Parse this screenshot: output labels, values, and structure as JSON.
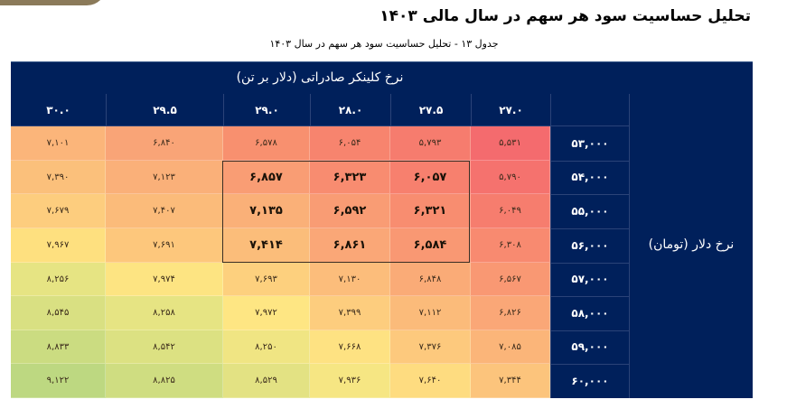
{
  "page": {
    "title": "تحلیل حساسیت سود هر سهم در سال مالی ۱۴۰۳",
    "caption": "جدول ۱۳ - تحلیل حساسیت سود هر سهم در سال ۱۴۰۳"
  },
  "table": {
    "column_group_title": "نرخ کلینکر صادراتی (دلار بر تن)",
    "row_group_title": "نرخ  دلار (تومان)",
    "columns": [
      "۳۰.۰",
      "۲۹.۵",
      "۲۹.۰",
      "۲۸.۰",
      "۲۷.۵",
      "۲۷.۰"
    ],
    "rows": [
      {
        "label": "۵۳,۰۰۰",
        "cells": [
          "۷,۱۰۱",
          "۶,۸۴۰",
          "۶,۵۷۸",
          "۶,۰۵۴",
          "۵,۷۹۳",
          "۵,۵۳۱"
        ]
      },
      {
        "label": "۵۴,۰۰۰",
        "cells": [
          "۷,۳۹۰",
          "۷,۱۲۳",
          "۶,۸۵۷",
          "۶,۳۲۳",
          "۶,۰۵۷",
          "۵,۷۹۰"
        ]
      },
      {
        "label": "۵۵,۰۰۰",
        "cells": [
          "۷,۶۷۹",
          "۷,۴۰۷",
          "۷,۱۳۵",
          "۶,۵۹۲",
          "۶,۳۲۱",
          "۶,۰۴۹"
        ]
      },
      {
        "label": "۵۶,۰۰۰",
        "cells": [
          "۷,۹۶۷",
          "۷,۶۹۱",
          "۷,۴۱۴",
          "۶,۸۶۱",
          "۶,۵۸۴",
          "۶,۳۰۸"
        ]
      },
      {
        "label": "۵۷,۰۰۰",
        "cells": [
          "۸,۲۵۶",
          "۷,۹۷۴",
          "۷,۶۹۳",
          "۷,۱۳۰",
          "۶,۸۴۸",
          "۶,۵۶۷"
        ]
      },
      {
        "label": "۵۸,۰۰۰",
        "cells": [
          "۸,۵۴۵",
          "۸,۲۵۸",
          "۷,۹۷۲",
          "۷,۳۹۹",
          "۷,۱۱۲",
          "۶,۸۲۶"
        ]
      },
      {
        "label": "۵۹,۰۰۰",
        "cells": [
          "۸,۸۳۳",
          "۸,۵۴۲",
          "۸,۲۵۰",
          "۷,۶۶۸",
          "۷,۳۷۶",
          "۷,۰۸۵"
        ]
      },
      {
        "label": "۶۰,۰۰۰",
        "cells": [
          "۹,۱۲۲",
          "۸,۸۲۵",
          "۸,۵۲۹",
          "۷,۹۳۶",
          "۷,۶۴۰",
          "۷,۳۴۴"
        ]
      }
    ],
    "highlighted_block": {
      "rows": [
        1,
        2,
        3
      ],
      "cols": [
        2,
        3,
        4
      ]
    },
    "colors": {
      "header_bg": "#00205b",
      "header_text": "#ffffff",
      "cells": [
        [
          "#fbb57a",
          "#f9a477",
          "#f8906f",
          "#f7846e",
          "#f67c6e",
          "#f46b6e"
        ],
        [
          "#fbc07b",
          "#fab079",
          "#f99d74",
          "#f88c70",
          "#f7806e",
          "#f5726e"
        ],
        [
          "#fdcd7e",
          "#fbbb7a",
          "#fab078",
          "#f99c74",
          "#f88d70",
          "#f67d6e"
        ],
        [
          "#fee07f",
          "#fdc77c",
          "#fbbd7a",
          "#faa777",
          "#f99873",
          "#f88a70"
        ],
        [
          "#e6e483",
          "#fde482",
          "#fdd07e",
          "#fcbd7b",
          "#faab77",
          "#f99873"
        ],
        [
          "#d9e082",
          "#e6e483",
          "#fee683",
          "#fdcd7e",
          "#fbbb7a",
          "#faa777"
        ],
        [
          "#cbdc81",
          "#dce182",
          "#f0e583",
          "#fee282",
          "#fdc97d",
          "#fbb579"
        ],
        [
          "#bdd881",
          "#cfdd81",
          "#e3e283",
          "#f6e683",
          "#fedc80",
          "#fcc47c"
        ]
      ]
    }
  }
}
